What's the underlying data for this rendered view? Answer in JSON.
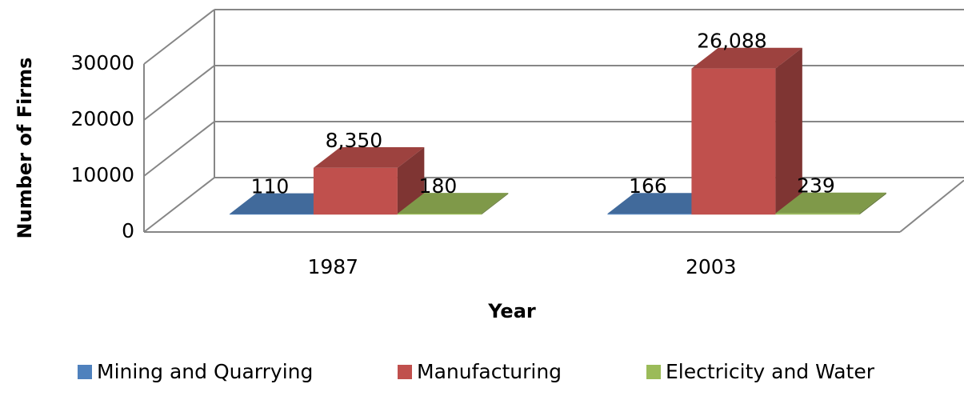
{
  "chart_data": {
    "type": "bar3d",
    "x_label": "Year",
    "y_label": "Number of Firms",
    "categories": [
      "1987",
      "2003"
    ],
    "series": [
      {
        "name": "Mining and Quarrying",
        "color": "#4f81bd",
        "values": [
          110,
          166
        ],
        "value_labels": [
          "110",
          "166"
        ]
      },
      {
        "name": "Manufacturing",
        "color": "#c0504d",
        "values": [
          8350,
          26088
        ],
        "value_labels": [
          "8,350",
          "26,088"
        ]
      },
      {
        "name": "Electricity and Water",
        "color": "#9bbb59",
        "values": [
          180,
          239
        ],
        "value_labels": [
          "180",
          "239"
        ]
      }
    ],
    "ylim": [
      0,
      30000
    ],
    "yticks": [
      0,
      10000,
      20000,
      30000
    ],
    "grid": true,
    "legend": "bottom"
  }
}
